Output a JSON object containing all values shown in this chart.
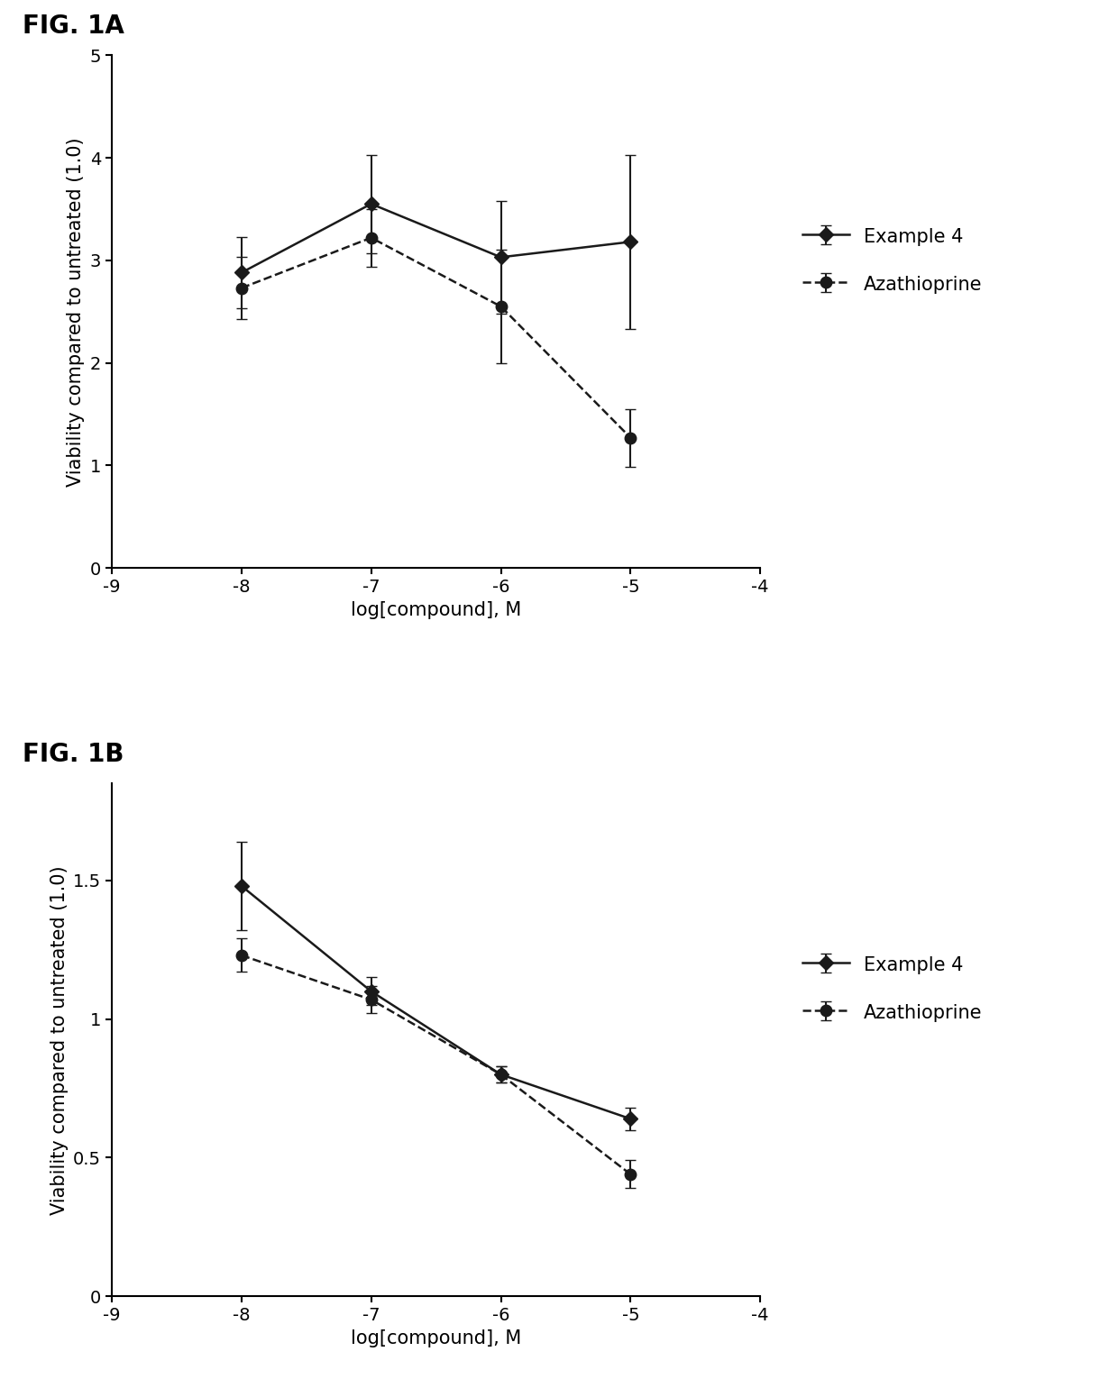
{
  "fig1a": {
    "title": "FIG. 1A",
    "xlabel": "log[compound], M",
    "ylabel": "Viability compared to untreated (1.0)",
    "xlim": [
      -9,
      -4
    ],
    "ylim": [
      0,
      5
    ],
    "xticks": [
      -9,
      -8,
      -7,
      -6,
      -5,
      -4
    ],
    "yticks": [
      0,
      1,
      2,
      3,
      4,
      5
    ],
    "example4": {
      "x": [
        -8,
        -7,
        -6,
        -5
      ],
      "y": [
        2.88,
        3.55,
        3.03,
        3.18
      ],
      "yerr_low": [
        0.35,
        0.48,
        0.55,
        0.85
      ],
      "yerr_high": [
        0.35,
        0.48,
        0.55,
        0.85
      ],
      "label": "Example 4",
      "color": "#1a1a1a",
      "linestyle": "-",
      "marker": "D",
      "markersize": 8,
      "linewidth": 1.8
    },
    "azathioprine": {
      "x": [
        -8,
        -7,
        -6,
        -5
      ],
      "y": [
        2.73,
        3.22,
        2.55,
        1.27
      ],
      "yerr_low": [
        0.3,
        0.28,
        0.55,
        0.28
      ],
      "yerr_high": [
        0.3,
        0.28,
        0.55,
        0.28
      ],
      "label": "Azathioprine",
      "color": "#1a1a1a",
      "linestyle": "--",
      "marker": "o",
      "markersize": 9,
      "linewidth": 1.8
    }
  },
  "fig1b": {
    "title": "FIG. 1B",
    "xlabel": "log[compound], M",
    "ylabel": "Viability compared to untreated (1.0)",
    "xlim": [
      -9,
      -4
    ],
    "ylim": [
      0.0,
      1.85
    ],
    "xticks": [
      -9,
      -8,
      -7,
      -6,
      -5,
      -4
    ],
    "yticks": [
      0.0,
      0.5,
      1.0,
      1.5
    ],
    "example4": {
      "x": [
        -8,
        -7,
        -6,
        -5
      ],
      "y": [
        1.48,
        1.1,
        0.8,
        0.64
      ],
      "yerr_low": [
        0.16,
        0.05,
        0.03,
        0.04
      ],
      "yerr_high": [
        0.16,
        0.05,
        0.03,
        0.04
      ],
      "label": "Example 4",
      "color": "#1a1a1a",
      "linestyle": "-",
      "marker": "D",
      "markersize": 8,
      "linewidth": 1.8
    },
    "azathioprine": {
      "x": [
        -8,
        -7,
        -6,
        -5
      ],
      "y": [
        1.23,
        1.07,
        0.8,
        0.44
      ],
      "yerr_low": [
        0.06,
        0.05,
        0.03,
        0.05
      ],
      "yerr_high": [
        0.06,
        0.05,
        0.03,
        0.05
      ],
      "label": "Azathioprine",
      "color": "#1a1a1a",
      "linestyle": "--",
      "marker": "o",
      "markersize": 9,
      "linewidth": 1.8
    }
  },
  "background_color": "#ffffff",
  "legend_fontsize": 15,
  "axis_label_fontsize": 15,
  "tick_fontsize": 14,
  "title_fontsize": 20,
  "capsize": 4,
  "elinewidth": 1.5
}
